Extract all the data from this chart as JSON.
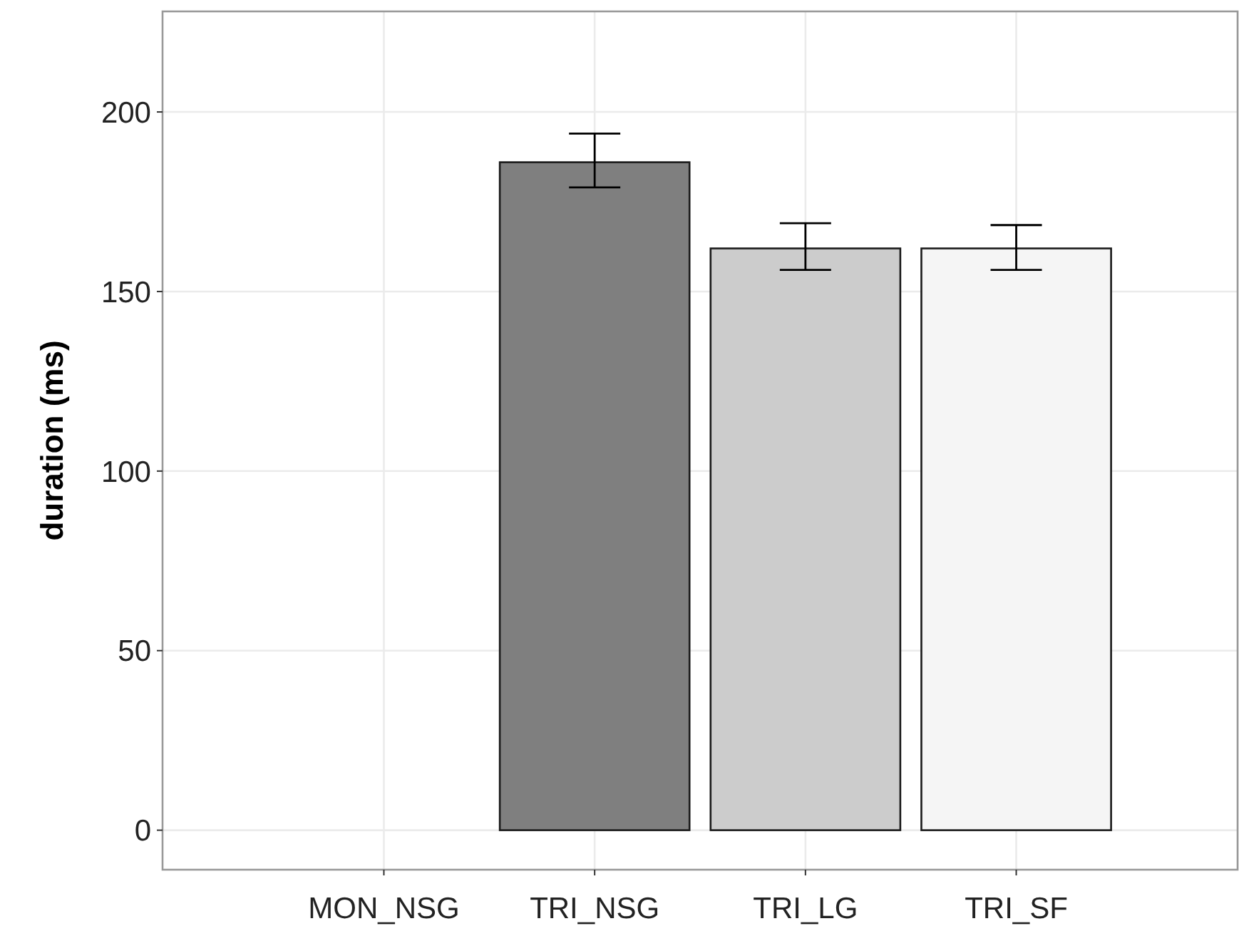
{
  "chart_data": {
    "type": "bar",
    "ylabel": "duration (ms)",
    "categories": [
      "MON_NSG",
      "TRI_NSG",
      "TRI_LG",
      "TRI_SF"
    ],
    "values": [
      null,
      186,
      162,
      162
    ],
    "colors": [
      null,
      "#7f7f7f",
      "#cccccc",
      "#f5f5f5"
    ],
    "errors": [
      null,
      [
        179,
        194
      ],
      [
        156,
        169
      ],
      [
        156,
        168.5
      ]
    ],
    "ylim": [
      -11,
      228
    ],
    "yticks": [
      0,
      50,
      100,
      150,
      200
    ],
    "grid": true
  }
}
